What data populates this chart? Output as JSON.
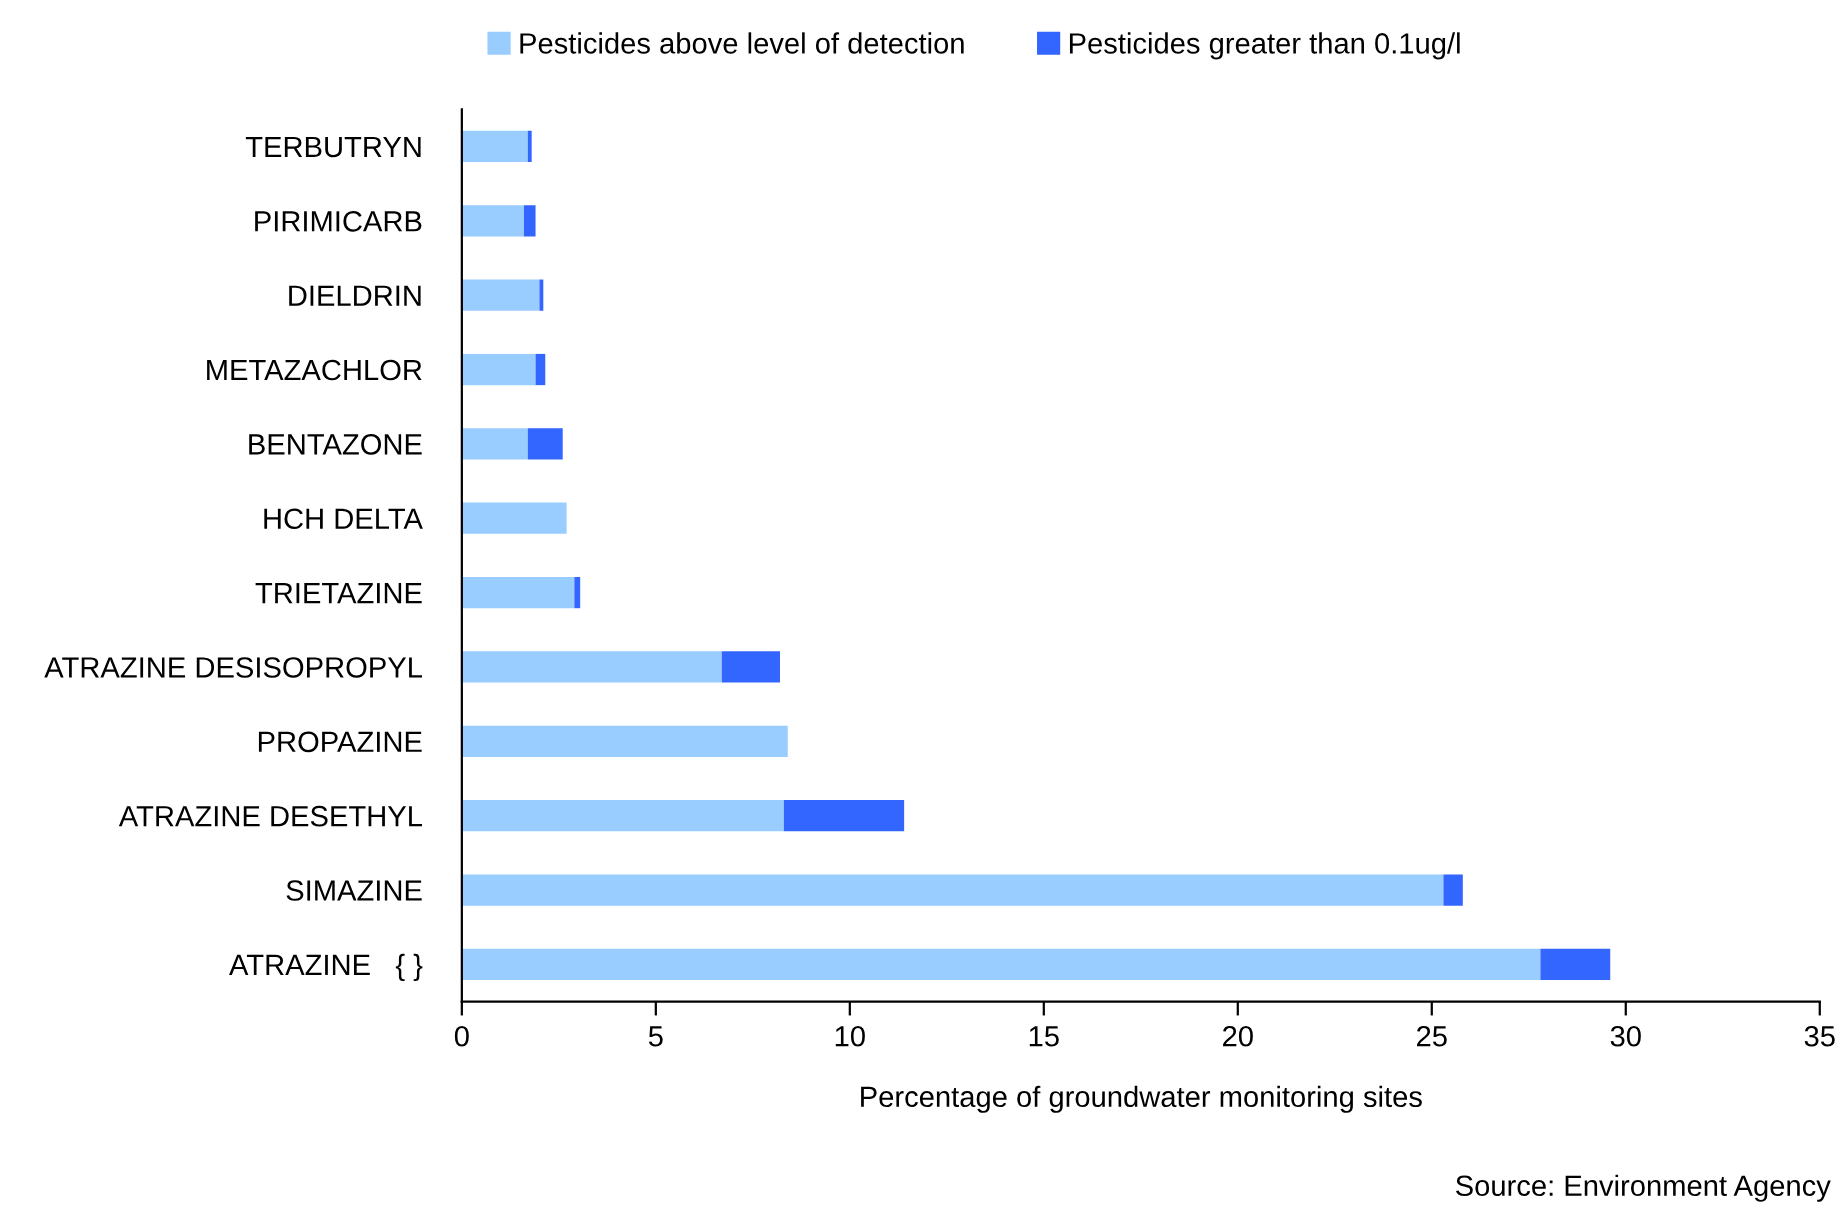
{
  "chart_data": {
    "type": "bar",
    "orientation": "horizontal",
    "stacked": true,
    "categories": [
      "TERBUTRYN",
      "PIRIMICARB",
      "DIELDRIN",
      "METAZACHLOR",
      "BENTAZONE",
      "HCH DELTA",
      "TRIETAZINE",
      "ATRAZINE DESISOPROPYL",
      "PROPAZINE",
      "ATRAZINE DESETHYL",
      "SIMAZINE",
      "ATRAZINE   { }"
    ],
    "series": [
      {
        "name": "Pesticides above level of detection",
        "color": "#99ccff",
        "values": [
          1.7,
          1.6,
          2.0,
          1.9,
          1.7,
          2.7,
          2.9,
          6.7,
          8.4,
          8.3,
          25.3,
          27.8
        ]
      },
      {
        "name": "Pesticides greater than 0.1ug/l",
        "color": "#3366ff",
        "values": [
          0.1,
          0.3,
          0.1,
          0.25,
          0.9,
          0,
          0.15,
          1.5,
          0,
          3.1,
          0.5,
          1.8
        ]
      }
    ],
    "xlim": [
      0,
      35
    ],
    "xticks": [
      0,
      5,
      10,
      15,
      20,
      25,
      30,
      35
    ],
    "xlabel": "Percentage of groundwater monitoring sites",
    "annotations": [
      "Source: Environment Agency"
    ],
    "legend": "top",
    "grid": false
  }
}
